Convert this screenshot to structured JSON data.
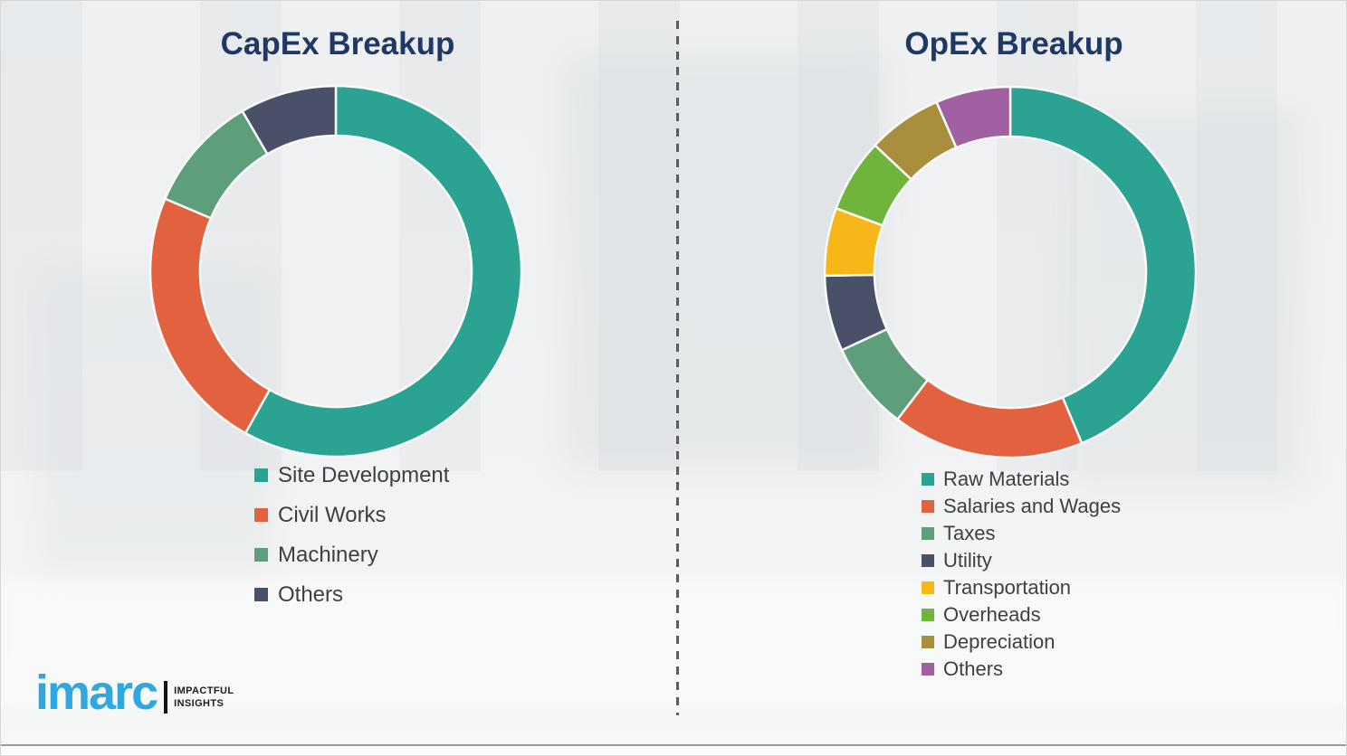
{
  "logo": {
    "brand": "imarc",
    "tagline_line1": "IMPACTFUL",
    "tagline_line2": "INSIGHTS",
    "brand_color": "#2FA8E0"
  },
  "chart_data": [
    {
      "type": "pie",
      "variant": "donut",
      "title": "CapEx Breakup",
      "title_color": "#1F3864",
      "categories": [
        "Site Development",
        "Civil Works",
        "Machinery",
        "Others"
      ],
      "values": [
        58.1,
        23.3,
        10.2,
        8.4
      ],
      "unit": "percent-share",
      "colors": [
        "#2BA393",
        "#E2613F",
        "#5F9E7B",
        "#4B5069"
      ],
      "start_angle_deg": 0,
      "direction": "clockwise",
      "inner_radius_ratio": 0.732,
      "legend_position": "below-chart-left",
      "data_labels": false
    },
    {
      "type": "pie",
      "variant": "donut",
      "title": "OpEx Breakup",
      "title_color": "#1F3864",
      "categories": [
        "Raw Materials",
        "Salaries and Wages",
        "Taxes",
        "Utility",
        "Transportation",
        "Overheads",
        "Depreciation",
        "Others"
      ],
      "values": [
        43.7,
        16.7,
        7.7,
        6.6,
        5.9,
        6.4,
        6.5,
        6.5
      ],
      "unit": "percent-share",
      "colors": [
        "#2BA393",
        "#E2613F",
        "#5F9E7B",
        "#4B5069",
        "#F7B718",
        "#6FB53C",
        "#A98E3E",
        "#A060A2"
      ],
      "start_angle_deg": 0,
      "direction": "clockwise",
      "inner_radius_ratio": 0.732,
      "legend_position": "below-chart-left",
      "data_labels": false
    }
  ]
}
